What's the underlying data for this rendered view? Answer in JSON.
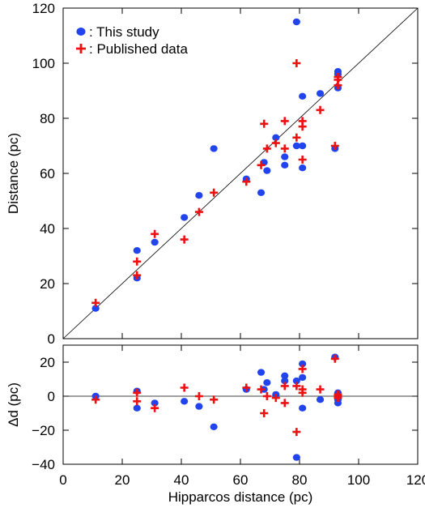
{
  "chart_data": [
    {
      "type": "scatter",
      "title": "",
      "xlabel": "",
      "ylabel": "Distance (pc)",
      "xlim": [
        0,
        120
      ],
      "ylim": [
        0,
        120
      ],
      "xticks": [
        "0",
        "20",
        "40",
        "60",
        "80",
        "100",
        "120"
      ],
      "yticks": [
        "0",
        "20",
        "40",
        "60",
        "80",
        "100",
        "120"
      ],
      "show_xtick_labels": false,
      "grid": false,
      "reference_line": "y = x",
      "legend_placement": "top-left",
      "series": [
        {
          "name": ": This study",
          "color": "#2244ee",
          "marker": "circle",
          "points": [
            [
              11,
              11
            ],
            [
              25,
              32
            ],
            [
              25,
              22
            ],
            [
              31,
              35
            ],
            [
              41,
              44
            ],
            [
              46,
              52
            ],
            [
              51,
              69
            ],
            [
              62,
              58
            ],
            [
              67,
              53
            ],
            [
              68,
              64
            ],
            [
              69,
              61
            ],
            [
              72,
              73
            ],
            [
              75,
              66
            ],
            [
              75,
              63
            ],
            [
              79,
              115
            ],
            [
              79,
              70
            ],
            [
              81,
              88
            ],
            [
              81,
              70
            ],
            [
              81,
              62
            ],
            [
              87,
              89
            ],
            [
              92,
              69
            ],
            [
              93,
              97
            ],
            [
              93,
              96
            ],
            [
              93,
              91
            ]
          ]
        },
        {
          "name": ": Published data",
          "color": "#ee1111",
          "marker": "plus",
          "points": [
            [
              11,
              13
            ],
            [
              25,
              28
            ],
            [
              25,
              23
            ],
            [
              31,
              38
            ],
            [
              41,
              36
            ],
            [
              46,
              46
            ],
            [
              51,
              53
            ],
            [
              62,
              57
            ],
            [
              67,
              63
            ],
            [
              68,
              78
            ],
            [
              69,
              69
            ],
            [
              72,
              71
            ],
            [
              75,
              79
            ],
            [
              75,
              69
            ],
            [
              79,
              100
            ],
            [
              79,
              73
            ],
            [
              81,
              79
            ],
            [
              81,
              77
            ],
            [
              81,
              65
            ],
            [
              87,
              83
            ],
            [
              92,
              70
            ],
            [
              93,
              95
            ],
            [
              93,
              94
            ],
            [
              93,
              92
            ]
          ]
        }
      ]
    },
    {
      "type": "scatter",
      "title": "",
      "xlabel": "Hipparcos distance (pc)",
      "ylabel": "Δd (pc)",
      "xlim": [
        0,
        120
      ],
      "ylim": [
        -40,
        30
      ],
      "xticks": [
        "0",
        "20",
        "40",
        "60",
        "80",
        "100",
        "120"
      ],
      "yticks": [
        "−40",
        "−20",
        "0",
        "20"
      ],
      "ytick_values": [
        -40,
        -20,
        0,
        20
      ],
      "grid": false,
      "reference_line": "y = 0",
      "series": [
        {
          "name": "This study",
          "color": "#2244ee",
          "marker": "circle",
          "points": [
            [
              11,
              0
            ],
            [
              25,
              3
            ],
            [
              25,
              -7
            ],
            [
              31,
              -4
            ],
            [
              41,
              -3
            ],
            [
              46,
              -6
            ],
            [
              51,
              -18
            ],
            [
              62,
              4
            ],
            [
              67,
              14
            ],
            [
              68,
              4
            ],
            [
              69,
              8
            ],
            [
              72,
              1
            ],
            [
              75,
              12
            ],
            [
              75,
              9
            ],
            [
              79,
              -36
            ],
            [
              79,
              9
            ],
            [
              81,
              19
            ],
            [
              81,
              11
            ],
            [
              81,
              -7
            ],
            [
              87,
              -2
            ],
            [
              92,
              23
            ],
            [
              93,
              2
            ],
            [
              93,
              -2
            ],
            [
              93,
              -4
            ]
          ]
        },
        {
          "name": "Published data",
          "color": "#ee1111",
          "marker": "plus",
          "points": [
            [
              11,
              -2
            ],
            [
              25,
              2
            ],
            [
              25,
              -3
            ],
            [
              31,
              -7
            ],
            [
              41,
              5
            ],
            [
              46,
              0
            ],
            [
              51,
              -2
            ],
            [
              62,
              5
            ],
            [
              67,
              4
            ],
            [
              68,
              -10
            ],
            [
              69,
              0
            ],
            [
              72,
              -1
            ],
            [
              75,
              6
            ],
            [
              75,
              -4
            ],
            [
              79,
              -21
            ],
            [
              79,
              6
            ],
            [
              81,
              16
            ],
            [
              81,
              4
            ],
            [
              81,
              2
            ],
            [
              87,
              4
            ],
            [
              92,
              22
            ],
            [
              93,
              0
            ],
            [
              93,
              1
            ],
            [
              93,
              -1
            ]
          ]
        }
      ]
    }
  ]
}
